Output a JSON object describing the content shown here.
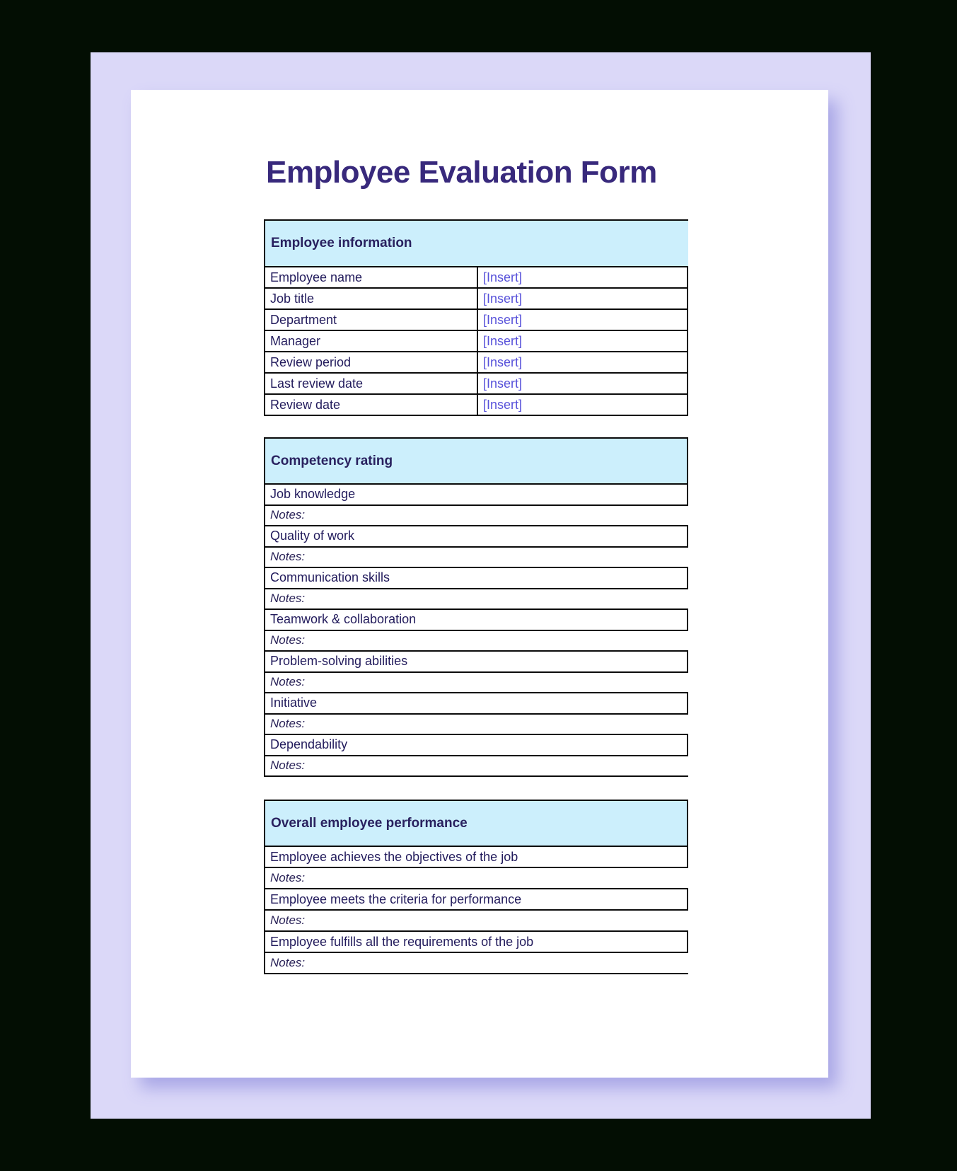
{
  "document": {
    "title": "Employee Evaluation Form",
    "sections": [
      {
        "heading": "Employee information",
        "fields": [
          {
            "label": "Employee name",
            "value": "[Insert]"
          },
          {
            "label": "Job title",
            "value": "[Insert]"
          },
          {
            "label": "Department",
            "value": "[Insert]"
          },
          {
            "label": "Manager",
            "value": "[Insert]"
          },
          {
            "label": "Review period",
            "value": "[Insert]"
          },
          {
            "label": "Last review date",
            "value": "[Insert]"
          },
          {
            "label": "Review date",
            "value": "[Insert]"
          }
        ]
      },
      {
        "heading": "Competency rating",
        "notes_label": "Notes:",
        "items": [
          "Job knowledge",
          "Quality of work",
          "Communication skills",
          "Teamwork & collaboration",
          "Problem-solving abilities",
          "Initiative",
          "Dependability"
        ]
      },
      {
        "heading": "Overall employee performance",
        "notes_label": "Notes:",
        "items": [
          "Employee achieves the objectives of the job",
          "Employee meets the criteria for performance",
          "Employee fulfills all the requirements of the job"
        ]
      }
    ]
  },
  "colors": {
    "background": "#030e03",
    "mat": "#dbd8f8",
    "page": "#ffffff",
    "section_header_bg": "#cceffc",
    "title_text": "#38297c",
    "label_text": "#221b5c",
    "insert_placeholder_text": "#5852da",
    "table_border": "#0b0b0b",
    "page_shadow": "#a9a7e6"
  }
}
